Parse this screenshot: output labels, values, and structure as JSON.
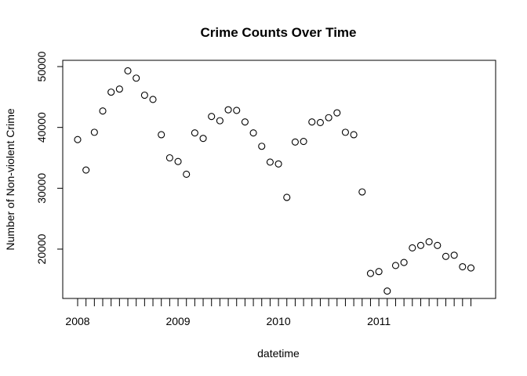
{
  "chart_data": {
    "type": "scatter",
    "title": "Crime Counts Over Time",
    "xlabel": "datetime",
    "ylabel": "Number of Non-violent Crime",
    "x_tick_labels": [
      "2008",
      "2009",
      "2010",
      "2011"
    ],
    "y_ticks": [
      20000,
      30000,
      40000,
      50000
    ],
    "ylim": [
      13000,
      51000
    ],
    "xlim": [
      "2007-12",
      "2011-12"
    ],
    "grid": false,
    "legend": "none",
    "marker": "open-circle",
    "marker_color": "#000000",
    "series": [
      {
        "x": [
          "2008-01",
          "2008-02",
          "2008-03",
          "2008-04",
          "2008-05",
          "2008-06",
          "2008-07",
          "2008-08",
          "2008-09",
          "2008-10",
          "2008-11",
          "2008-12",
          "2009-01",
          "2009-02",
          "2009-03",
          "2009-04",
          "2009-05",
          "2009-06",
          "2009-07",
          "2009-08",
          "2009-09",
          "2009-10",
          "2009-11",
          "2009-12",
          "2010-01",
          "2010-02",
          "2010-03",
          "2010-04",
          "2010-05",
          "2010-06",
          "2010-07",
          "2010-08",
          "2010-09",
          "2010-10",
          "2010-11",
          "2010-12",
          "2011-01",
          "2011-02",
          "2011-03",
          "2011-04",
          "2011-05",
          "2011-06",
          "2011-07",
          "2011-08",
          "2011-09",
          "2011-10",
          "2011-11",
          "2011-12"
        ],
        "y": [
          38000,
          33000,
          39200,
          42700,
          45800,
          46300,
          49300,
          48100,
          45300,
          44600,
          38800,
          35000,
          34400,
          32300,
          39100,
          38200,
          41800,
          41100,
          42900,
          42800,
          40900,
          39100,
          36900,
          34300,
          34000,
          28500,
          37600,
          37700,
          40900,
          40800,
          41600,
          42400,
          39200,
          38800,
          29400,
          16000,
          16300,
          13100,
          17300,
          17800,
          20200,
          20600,
          21200,
          20600,
          18800,
          19000,
          17100,
          16900
        ]
      }
    ]
  }
}
